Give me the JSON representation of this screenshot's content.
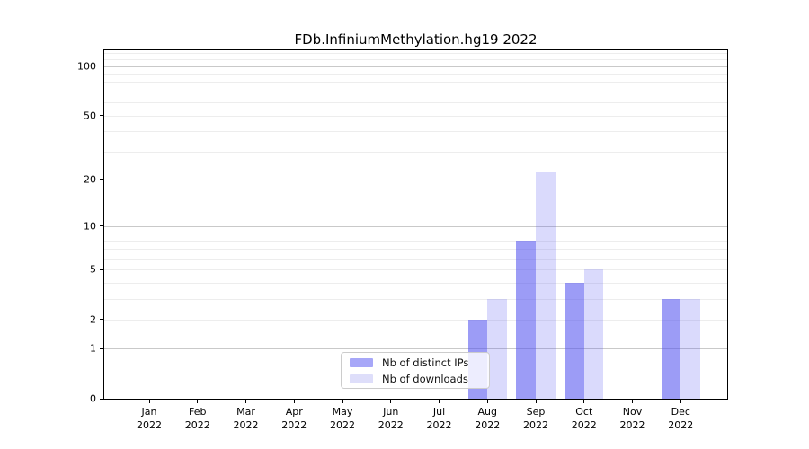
{
  "chart_data": {
    "type": "bar",
    "title": "FDb.InfiniumMethylation.hg19 2022",
    "y_scale": "log1p",
    "ylim": [
      0,
      125
    ],
    "grid": true,
    "legend_position": "lower center",
    "y_axis": {
      "ticks": [
        0,
        1,
        2,
        5,
        10,
        20,
        50,
        100
      ],
      "gridlines_minor": [
        2,
        3,
        4,
        5,
        6,
        7,
        8,
        9,
        20,
        30,
        40,
        50,
        60,
        70,
        80,
        90,
        110,
        120
      ],
      "gridlines_decade": [
        1,
        10,
        100
      ]
    },
    "categories": [
      {
        "label": "Jan",
        "sublabel": "2022"
      },
      {
        "label": "Feb",
        "sublabel": "2022"
      },
      {
        "label": "Mar",
        "sublabel": "2022"
      },
      {
        "label": "Apr",
        "sublabel": "2022"
      },
      {
        "label": "May",
        "sublabel": "2022"
      },
      {
        "label": "Jun",
        "sublabel": "2022"
      },
      {
        "label": "Jul",
        "sublabel": "2022"
      },
      {
        "label": "Aug",
        "sublabel": "2022"
      },
      {
        "label": "Sep",
        "sublabel": "2022"
      },
      {
        "label": "Oct",
        "sublabel": "2022"
      },
      {
        "label": "Nov",
        "sublabel": "2022"
      },
      {
        "label": "Dec",
        "sublabel": "2022"
      }
    ],
    "series": [
      {
        "name": "Nb of distinct IPs",
        "color": "rgba(85,85,240,0.58)",
        "color_solid": "#a7a7f8",
        "values": [
          0,
          0,
          0,
          0,
          0,
          0,
          0,
          2,
          8,
          4,
          0,
          3
        ]
      },
      {
        "name": "Nb of downloads",
        "color": "rgba(85,85,240,0.215)",
        "color_solid": "#dedefa",
        "values": [
          0,
          0,
          0,
          0,
          0,
          0,
          0,
          3,
          22,
          5,
          0,
          3
        ]
      }
    ]
  }
}
